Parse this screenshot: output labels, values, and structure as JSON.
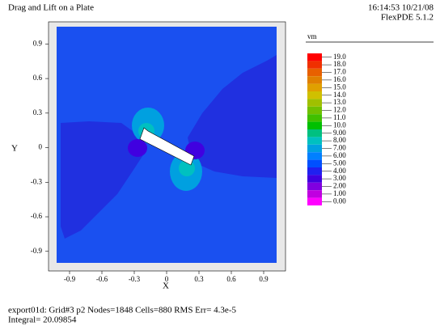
{
  "chart_data": {
    "type": "contour",
    "title": "Drag and Lift on a Plate",
    "timestamp": "16:14:53 10/21/08",
    "software": "FlexPDE 5.1.2",
    "xlabel": "X",
    "ylabel": "Y",
    "xlim": [
      -1.02,
      1.02
    ],
    "ylim": [
      -1,
      1.05
    ],
    "xticks": [
      -0.9,
      -0.6,
      -0.3,
      0,
      0.3,
      0.6,
      0.9
    ],
    "yticks": [
      0.9,
      0.6,
      0.3,
      0,
      -0.3,
      -0.6,
      -0.9
    ],
    "colorbar": {
      "label": "vm",
      "levels": [
        {
          "value": 19,
          "label": "19.0"
        },
        {
          "value": 18,
          "label": "18.0"
        },
        {
          "value": 17,
          "label": "17.0"
        },
        {
          "value": 16,
          "label": "16.0"
        },
        {
          "value": 15,
          "label": "15.0"
        },
        {
          "value": 14,
          "label": "14.0"
        },
        {
          "value": 13,
          "label": "13.0"
        },
        {
          "value": 12,
          "label": "12.0"
        },
        {
          "value": 11,
          "label": "11.0"
        },
        {
          "value": 10,
          "label": "10.0"
        },
        {
          "value": 9,
          "label": "9.00"
        },
        {
          "value": 8,
          "label": "8.00"
        },
        {
          "value": 7,
          "label": "7.00"
        },
        {
          "value": 6,
          "label": "6.00"
        },
        {
          "value": 5,
          "label": "5.00"
        },
        {
          "value": 4,
          "label": "4.00"
        },
        {
          "value": 3,
          "label": "3.00"
        },
        {
          "value": 2,
          "label": "2.00"
        },
        {
          "value": 1,
          "label": "1.00"
        },
        {
          "value": 0,
          "label": "0.00"
        }
      ],
      "colors": [
        "#ff0000",
        "#f03000",
        "#e86000",
        "#e08000",
        "#e0a000",
        "#d0c000",
        "#a0c000",
        "#70c000",
        "#40c000",
        "#00c000",
        "#00c080",
        "#00c0c0",
        "#00a0e0",
        "#0080ff",
        "#0050ff",
        "#2020f0",
        "#4000e0",
        "#8000e0",
        "#c000e0",
        "#ff00ff"
      ]
    },
    "annotations": [
      "export01d:  Grid#3  p2  Nodes=1848 Cells=880 RMS Err= 4.3e-5",
      "Integral=  20.09854"
    ]
  }
}
